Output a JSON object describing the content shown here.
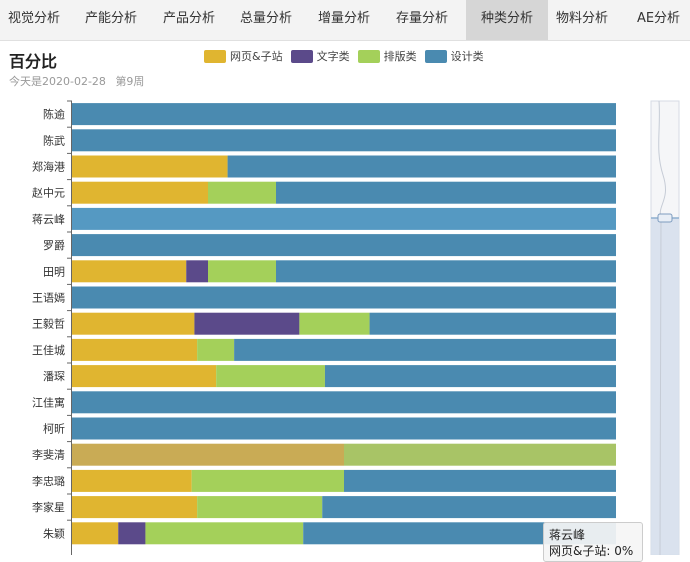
{
  "tabs": [
    {
      "label": "视觉分析",
      "active": false
    },
    {
      "label": "产能分析",
      "active": false
    },
    {
      "label": "产品分析",
      "active": false
    },
    {
      "label": "总量分析",
      "active": false
    },
    {
      "label": "增量分析",
      "active": false
    },
    {
      "label": "存量分析",
      "active": false
    },
    {
      "label": "种类分析",
      "active": true
    },
    {
      "label": "物料分析",
      "active": false
    },
    {
      "label": "AE分析",
      "active": false
    }
  ],
  "header": {
    "title": "百分比",
    "date_text": "今天是2020-02-28",
    "week_text": "第9周"
  },
  "tooltip": {
    "name": "蒋云峰",
    "line": "网页&子站: 0%"
  },
  "colors": {
    "网页&子站": "#e0b530",
    "文字类": "#5b4a8a",
    "排版类": "#a4d05a",
    "设计类": "#4a8ab0",
    "highlight_设计类": "#5599c2",
    "dim_网页&子站": "#c9ab55",
    "dim_排版类": "#a8c466"
  },
  "chart_data": {
    "type": "bar",
    "orientation": "horizontal",
    "stacked": true,
    "percent": true,
    "categories": [
      "陈逾",
      "陈武",
      "郑海港",
      "赵中元",
      "蒋云峰",
      "罗爵",
      "田明",
      "王语嫣",
      "王毅哲",
      "王佳城",
      "潘琛",
      "江佳寓",
      "柯昕",
      "李斐清",
      "李忠璐",
      "李家星",
      "朱颖"
    ],
    "series": [
      {
        "name": "网页&子站",
        "values": [
          0,
          0,
          28.6,
          25,
          0,
          0,
          21,
          0,
          22.5,
          23,
          26.5,
          0,
          0,
          50,
          22,
          23,
          8.5
        ]
      },
      {
        "name": "文字类",
        "values": [
          0,
          0,
          0,
          0,
          0,
          0,
          4,
          0,
          19.3,
          0,
          0,
          0,
          0,
          0,
          0,
          0,
          5
        ]
      },
      {
        "name": "排版类",
        "values": [
          0,
          0,
          0,
          12.5,
          0,
          0,
          12.5,
          0,
          12.9,
          6.8,
          20,
          0,
          0,
          50,
          28,
          23,
          29
        ]
      },
      {
        "name": "设计类",
        "values": [
          100,
          100,
          71.4,
          62.5,
          100,
          100,
          62.5,
          100,
          45.3,
          70.2,
          53.5,
          100,
          100,
          0,
          50,
          54,
          57.5
        ]
      }
    ],
    "highlight": {
      "category": "蒋云峰"
    },
    "dimmed": {
      "category": "李斐清"
    },
    "xlim": [
      0,
      100
    ],
    "legend": "top-center"
  }
}
